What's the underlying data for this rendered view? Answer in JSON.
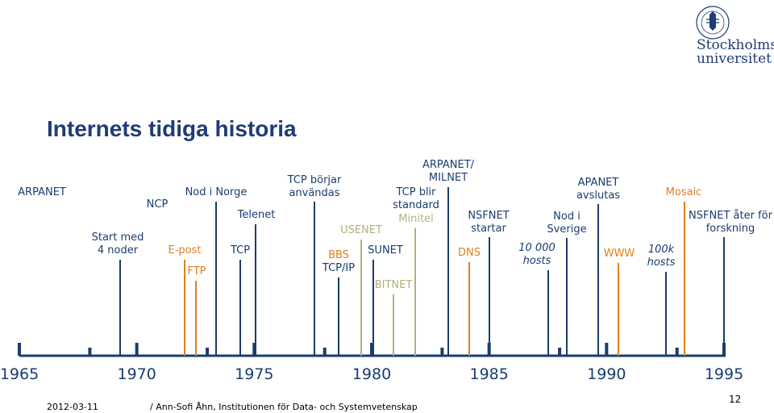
{
  "title": "Internets tidiga historia",
  "logo": {
    "line1": "Stockholms",
    "line2": "universitet",
    "seal_text": "STOCKHOLMS UNIVERSITET"
  },
  "colors": {
    "blue": "#1a3d6e",
    "orange": "#e07f1c",
    "olive": "#b3b07a"
  },
  "years": [
    "1965",
    "1970",
    "1975",
    "1980",
    "1985",
    "1990",
    "1995"
  ],
  "events": [
    {
      "id": "start-med-4-noder",
      "year": 1969.0,
      "color": "blue",
      "lines": [
        "Start med",
        "4 noder"
      ]
    },
    {
      "id": "arpanet",
      "year": 1969.0,
      "color": "blue",
      "lines": [
        "ARPANET"
      ]
    },
    {
      "id": "ncp",
      "year": 1970.4,
      "color": "blue",
      "lines": [
        "NCP"
      ]
    },
    {
      "id": "e-post",
      "year": 1971.9,
      "color": "orange",
      "lines": [
        "E-post"
      ]
    },
    {
      "id": "ftp",
      "year": 1972.4,
      "color": "orange",
      "lines": [
        "FTP"
      ]
    },
    {
      "id": "nod-i-norge",
      "year": 1973.3,
      "color": "blue",
      "lines": [
        "Nod i Norge"
      ]
    },
    {
      "id": "tcp",
      "year": 1974.3,
      "color": "blue",
      "lines": [
        "TCP"
      ]
    },
    {
      "id": "telenet",
      "year": 1974.9,
      "color": "blue",
      "lines": [
        "Telenet"
      ]
    },
    {
      "id": "tcp-borjar-anvandas",
      "year": 1977.3,
      "color": "blue",
      "lines": [
        "TCP börjar",
        "användas"
      ]
    },
    {
      "id": "bbs",
      "year": 1978.3,
      "color": "orange",
      "lines": [
        "BBS"
      ]
    },
    {
      "id": "tcp-ip",
      "year": 1978.3,
      "color": "blue",
      "lines": [
        "TCP/IP"
      ]
    },
    {
      "id": "usenet",
      "year": 1979.3,
      "color": "olive",
      "lines": [
        "USENET"
      ]
    },
    {
      "id": "sunet",
      "year": 1980.0,
      "color": "blue",
      "lines": [
        "SUNET"
      ]
    },
    {
      "id": "bitnet",
      "year": 1980.9,
      "color": "olive",
      "lines": [
        "BITNET"
      ]
    },
    {
      "id": "tcp-blir-standard",
      "year": 1981.8,
      "color": "blue",
      "lines": [
        "TCP blir",
        "standard"
      ]
    },
    {
      "id": "minitel",
      "year": 1981.8,
      "color": "olive",
      "lines": [
        "Minitel"
      ]
    },
    {
      "id": "arpanet-milnet",
      "year": 1983.0,
      "color": "blue",
      "lines": [
        "ARPANET/",
        "MILNET"
      ]
    },
    {
      "id": "dns",
      "year": 1984.0,
      "color": "orange",
      "lines": [
        "DNS"
      ]
    },
    {
      "id": "nsfnet-startar",
      "year": 1984.9,
      "color": "blue",
      "lines": [
        "NSFNET",
        "startar"
      ]
    },
    {
      "id": "10000-hosts",
      "year": 1986.8,
      "color": "blue",
      "italic": true,
      "lines": [
        "10 000",
        "hosts"
      ]
    },
    {
      "id": "nod-i-sverige",
      "year": 1988.1,
      "color": "blue",
      "lines": [
        "Nod i",
        "Sverige"
      ]
    },
    {
      "id": "apanet-avslutas",
      "year": 1990.0,
      "color": "blue",
      "lines": [
        "APANET",
        "avslutas"
      ]
    },
    {
      "id": "www",
      "year": 1990.8,
      "color": "orange",
      "lines": [
        "WWW"
      ]
    },
    {
      "id": "100k-hosts",
      "year": 1992.1,
      "color": "blue",
      "italic": true,
      "lines": [
        "100k",
        "hosts"
      ]
    },
    {
      "id": "mosaic",
      "year": 1993.0,
      "color": "orange",
      "lines": [
        "Mosaic"
      ]
    },
    {
      "id": "nsfnet-ater-for-forskning",
      "year": 1995.0,
      "color": "blue",
      "lines": [
        "NSFNET åter för",
        "forskning"
      ]
    }
  ],
  "footer": {
    "date": "2012-03-11",
    "author": "/ Ann-Sofi Åhn, Institutionen för Data- och Systemvetenskap",
    "page": "12"
  }
}
